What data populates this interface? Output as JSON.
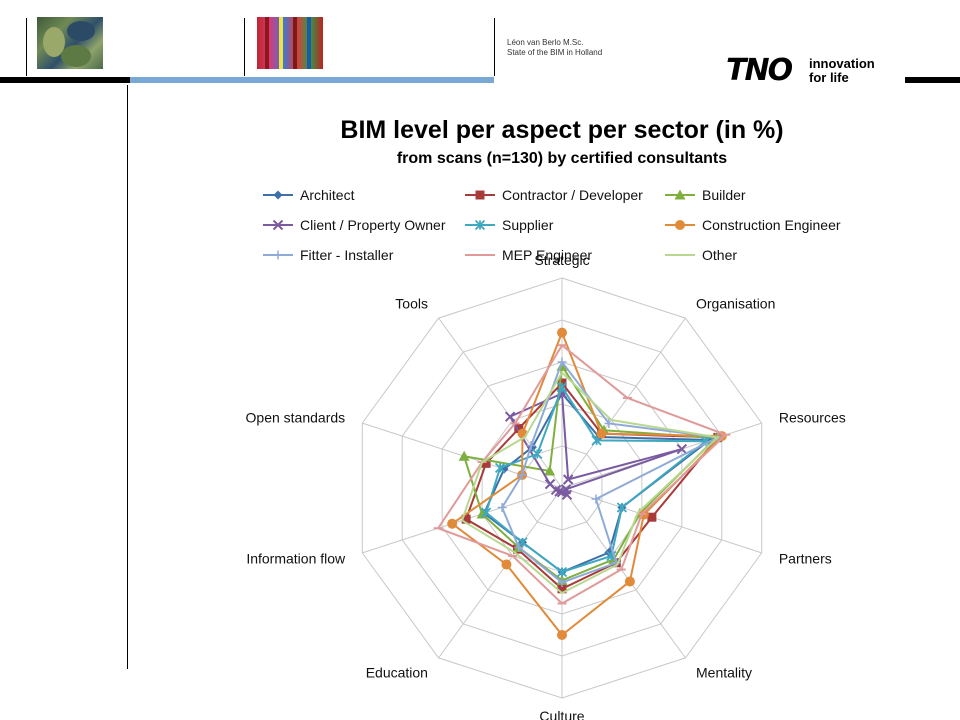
{
  "header": {
    "author": "Léon van Berlo M.Sc.",
    "subtitle": "State of the BIM in Holland",
    "logo_mark": "TNO",
    "logo_tagline_1": "innovation",
    "logo_tagline_2": "for life"
  },
  "colors": {
    "accent_band": "#7ba7d4",
    "dark": "#000000"
  },
  "chart_data": {
    "type": "radar",
    "title": "BIM level per aspect per sector (in %)",
    "subtitle": "from scans (n=130) by certified consultants",
    "categories": [
      "Strategic",
      "Organisation",
      "Resources",
      "Partners",
      "Mentality",
      "Culture",
      "Education",
      "Information flow",
      "Open standards",
      "Tools"
    ],
    "rlim": [
      0,
      100
    ],
    "rings": 5,
    "legend_position": "top",
    "series": [
      {
        "name": "Architect",
        "color": "#3f6fa8",
        "marker": "diamond",
        "values": [
          45,
          30,
          74,
          30,
          38,
          40,
          32,
          39,
          29,
          24
        ]
      },
      {
        "name": "Contractor / Developer",
        "color": "#a83a3a",
        "marker": "square",
        "values": [
          50,
          32,
          78,
          45,
          44,
          48,
          36,
          48,
          38,
          35
        ]
      },
      {
        "name": "Builder",
        "color": "#7faf3f",
        "marker": "triangle",
        "values": [
          58,
          34,
          77,
          39,
          42,
          44,
          35,
          40,
          49,
          10
        ]
      },
      {
        "name": "Client / Property Owner",
        "color": "#7a5aa0",
        "marker": "x",
        "values": [
          45,
          5,
          60,
          2,
          4,
          2,
          2,
          3,
          6,
          42
        ]
      },
      {
        "name": "Supplier",
        "color": "#3fa8c0",
        "marker": "asterisk",
        "values": [
          48,
          28,
          72,
          30,
          40,
          40,
          32,
          38,
          31,
          20
        ]
      },
      {
        "name": "Construction Engineer",
        "color": "#e08a3a",
        "marker": "circle",
        "values": [
          74,
          32,
          80,
          41,
          55,
          70,
          45,
          55,
          20,
          32
        ]
      },
      {
        "name": "Fitter - Installer",
        "color": "#8faad8",
        "marker": "plus",
        "values": [
          60,
          38,
          78,
          17,
          44,
          45,
          35,
          30,
          20,
          25
        ]
      },
      {
        "name": "MEP Engineer",
        "color": "#e09a9a",
        "marker": "dash",
        "values": [
          68,
          53,
          82,
          40,
          48,
          55,
          40,
          62,
          40,
          38
        ]
      },
      {
        "name": "Other",
        "color": "#b8d890",
        "marker": "none",
        "values": [
          55,
          40,
          78,
          38,
          45,
          50,
          38,
          50,
          40,
          30
        ]
      }
    ]
  }
}
